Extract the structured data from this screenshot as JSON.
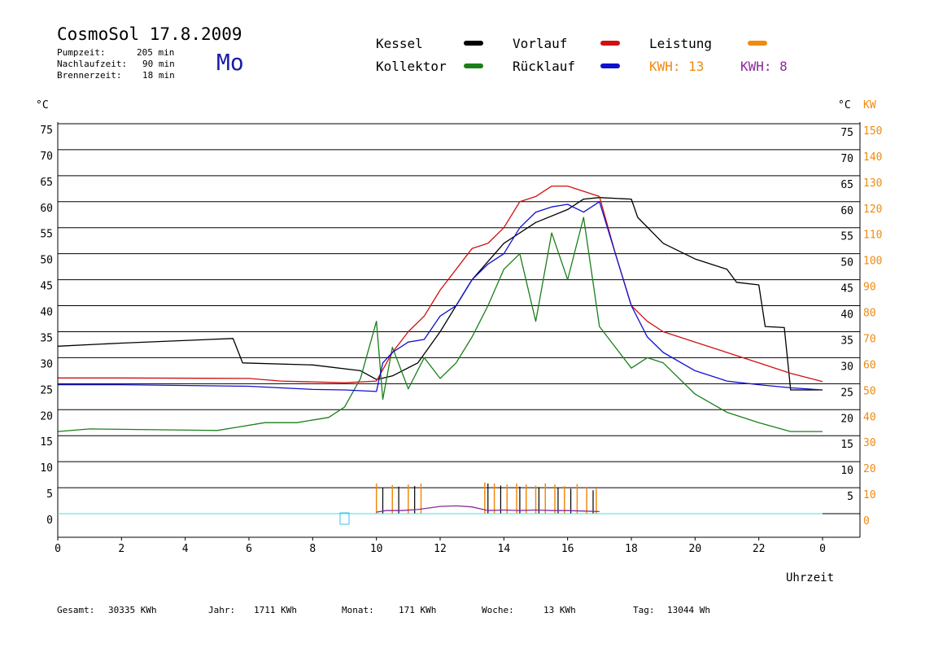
{
  "header": {
    "title": "CosmoSol 17.8.2009",
    "day": "Mo",
    "stats": [
      {
        "label": "Pumpzeit:",
        "value": "205 min"
      },
      {
        "label": "Nachlaufzeit:",
        "value": "90 min"
      },
      {
        "label": "Brennerzeit:",
        "value": "18 min"
      }
    ]
  },
  "legend": {
    "items": [
      {
        "label": "Kessel",
        "color": "#000000"
      },
      {
        "label": "Kollektor",
        "color": "#1a7f1a"
      },
      {
        "label": "Vorlauf",
        "color": "#d01010"
      },
      {
        "label": "Rücklauf",
        "color": "#1010d0"
      },
      {
        "label": "Leistung",
        "color": "#f08a10"
      }
    ],
    "kwh_orange": "KWH: 13",
    "kwh_purple": "KWH: 8"
  },
  "footer": {
    "items": [
      {
        "label": "Gesamt:",
        "value": "30335 KWh"
      },
      {
        "label": "Jahr:",
        "value": "1711 KWh"
      },
      {
        "label": "Monat:",
        "value": "171 KWh"
      },
      {
        "label": "Woche:",
        "value": "13 KWh"
      },
      {
        "label": "Tag:",
        "value": "13044 Wh"
      }
    ]
  },
  "chart_data": {
    "type": "line",
    "xlabel": "Uhrzeit",
    "ylabel_left": "°C",
    "ylabel_right_c": "°C",
    "ylabel_right_kw": "KW",
    "xlim": [
      0,
      24
    ],
    "ylim": [
      0,
      75
    ],
    "ylim_kw": [
      0,
      150
    ],
    "x_ticks": [
      "0",
      "2",
      "4",
      "6",
      "8",
      "10",
      "12",
      "14",
      "16",
      "18",
      "20",
      "22",
      "0"
    ],
    "y_ticks": [
      0,
      5,
      10,
      15,
      20,
      25,
      30,
      35,
      40,
      45,
      50,
      55,
      60,
      65,
      70,
      75
    ],
    "kw_ticks": [
      {
        "c": 0,
        "label": "0"
      },
      {
        "c": 5,
        "label": "10"
      },
      {
        "c": 10,
        "label": "20"
      },
      {
        "c": 15,
        "label": "30"
      },
      {
        "c": 20,
        "label": "40"
      },
      {
        "c": 25,
        "label": "50"
      },
      {
        "c": 30,
        "label": "60"
      },
      {
        "c": 35,
        "label": "70"
      },
      {
        "c": 40,
        "label": "80"
      },
      {
        "c": 45,
        "label": "90"
      },
      {
        "c": 50,
        "label": "100"
      },
      {
        "c": 55,
        "label": "110"
      },
      {
        "c": 60,
        "label": "120"
      },
      {
        "c": 65,
        "label": "130"
      },
      {
        "c": 70,
        "label": "140"
      },
      {
        "c": 75,
        "label": "150"
      }
    ],
    "grid": true,
    "legend_position": "top",
    "series": [
      {
        "name": "Kessel",
        "color": "#000000",
        "x": [
          0,
          2,
          5.5,
          5.8,
          8,
          9.5,
          10,
          10.5,
          11.3,
          12,
          13,
          14,
          15,
          16,
          16.5,
          17,
          18,
          18.2,
          19,
          20,
          21,
          21.3,
          22,
          22.2,
          22.8,
          23,
          24
        ],
        "y": [
          32.2,
          32.8,
          33.7,
          29,
          28.6,
          27.5,
          25.8,
          26.5,
          29,
          35,
          45,
          52,
          56,
          58.5,
          60.5,
          60.8,
          60.5,
          57,
          52,
          49,
          47,
          44.5,
          44,
          36,
          35.8,
          23.8,
          23.8
        ]
      },
      {
        "name": "Kollektor",
        "color": "#1a7f1a",
        "x": [
          0,
          1,
          5,
          5.6,
          6.5,
          7.5,
          8.5,
          9,
          9.5,
          10,
          10.2,
          10.5,
          11,
          11.5,
          12,
          12.5,
          13,
          13.5,
          14,
          14.5,
          15,
          15.5,
          16,
          16.5,
          17,
          17.5,
          18,
          18.5,
          19,
          20,
          21,
          22,
          23,
          24
        ],
        "y": [
          15.8,
          16.3,
          16,
          16.6,
          17.5,
          17.5,
          18.5,
          20.5,
          26,
          37,
          22,
          32,
          24,
          30,
          26,
          29,
          34,
          40,
          47,
          50,
          37,
          54,
          45,
          57,
          36,
          32,
          28,
          30,
          29,
          23,
          19.5,
          17.5,
          15.8,
          15.8
        ]
      },
      {
        "name": "Vorlauf",
        "color": "#d01010",
        "x": [
          0,
          2,
          6,
          7,
          9,
          10,
          10.5,
          11,
          11.5,
          12,
          13,
          13.5,
          14,
          14.5,
          15,
          15.5,
          16,
          16.5,
          17,
          17.5,
          18,
          18.5,
          19,
          20,
          21,
          22,
          23,
          24
        ],
        "y": [
          26.1,
          26.1,
          26,
          25.5,
          25.2,
          25.5,
          31,
          35,
          38,
          43,
          51,
          52,
          55,
          60,
          61,
          63,
          63,
          62,
          61,
          50,
          40,
          37,
          35,
          33,
          31,
          29,
          27,
          25.4
        ]
      },
      {
        "name": "Rücklauf",
        "color": "#1010d0",
        "x": [
          0,
          2,
          6,
          8,
          9,
          10,
          10.2,
          10.5,
          11,
          11.5,
          12,
          12.5,
          13,
          13.5,
          14,
          14.5,
          15,
          15.5,
          16,
          16.5,
          17,
          17.5,
          18,
          18.5,
          19,
          20,
          21,
          22,
          23,
          24
        ],
        "y": [
          24.8,
          24.8,
          24.5,
          23.9,
          23.8,
          23.5,
          29,
          31,
          33,
          33.5,
          38,
          40,
          45,
          48,
          50,
          55,
          58,
          59,
          59.5,
          58,
          60,
          50,
          40,
          34,
          31,
          27.5,
          25.5,
          24.8,
          24.2,
          23.8
        ]
      }
    ],
    "power_bars": {
      "orange_x": [
        10,
        10.5,
        11,
        11.4,
        13.4,
        13.7,
        14.1,
        14.4,
        14.7,
        15,
        15.3,
        15.6,
        15.9,
        16.3,
        16.6,
        16.9
      ],
      "orange_y": [
        5.8,
        5.5,
        5.6,
        5.8,
        6,
        5.8,
        5.6,
        5.8,
        5.6,
        5.4,
        5.8,
        5.6,
        5.3,
        5.7,
        5,
        4.8
      ],
      "black_x": [
        10.2,
        10.7,
        11.2,
        13.5,
        13.9,
        14.5,
        15.1,
        15.7,
        16.1,
        16.8
      ],
      "black_y": [
        5,
        5.2,
        5.3,
        5.8,
        5.4,
        5.2,
        5.1,
        5.0,
        4.8,
        4.5
      ],
      "purple_x": [
        10,
        10.3,
        10.8,
        11.3,
        12,
        12.5,
        13,
        13.5,
        14,
        14.5,
        15,
        15.5,
        16,
        16.5,
        17
      ],
      "purple_y": [
        0.3,
        0.6,
        0.6,
        0.8,
        1.4,
        1.5,
        1.3,
        0.6,
        0.7,
        0.6,
        0.7,
        0.6,
        0.6,
        0.5,
        0.4
      ]
    }
  }
}
